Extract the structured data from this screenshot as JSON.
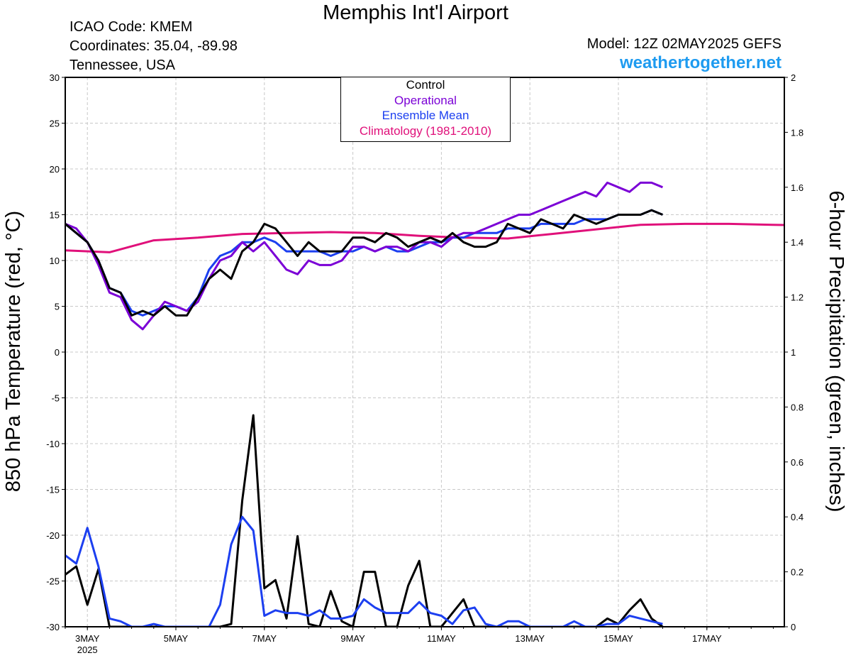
{
  "header": {
    "title": "Memphis Int'l Airport",
    "icao": "ICAO Code: KMEM",
    "coordinates": "Coordinates: 35.04, -89.98",
    "region": "Tennessee, USA",
    "model": "Model: 12Z 02MAY2025 GEFS",
    "site": "weathertogether.net"
  },
  "colors": {
    "control": "#000000",
    "operational": "#7b00d6",
    "ensemble_mean": "#1c3ff0",
    "climatology": "#e0107a",
    "members_temp": "#f04a3a",
    "members_precip": "#22cc22"
  },
  "chart_data": {
    "type": "line",
    "title": "Memphis Int'l Airport",
    "ylabel_left": "850 hPa Temperature (red, °C)",
    "ylabel_right": "6-hour Precipitation (green, inches)",
    "ylim_left": [
      -30,
      30
    ],
    "ylim_right": [
      0,
      2
    ],
    "y_ticks_left": [
      "30",
      "25",
      "20",
      "15",
      "10",
      "5",
      "0",
      "-5",
      "-10",
      "-15",
      "-20",
      "-25",
      "-30"
    ],
    "y_ticks_right": [
      "2",
      "1.8",
      "1.6",
      "1.4",
      "1.2",
      "1",
      "0.8",
      "0.6",
      "0.4",
      "0.2",
      "0"
    ],
    "x_ticks": [
      "3MAY",
      "5MAY",
      "7MAY",
      "9MAY",
      "11MAY",
      "13MAY",
      "15MAY",
      "17MAY"
    ],
    "x_sub": "2025",
    "x_hours_range": [
      0,
      390
    ],
    "x_tick_hours": [
      12,
      60,
      108,
      156,
      204,
      252,
      300,
      348
    ],
    "legend": [
      "Control",
      "Operational",
      "Ensemble Mean",
      "Climatology (1981-2010)"
    ],
    "legend_placement": "top-center",
    "grid": true,
    "series": [
      {
        "name": "Control",
        "axis": "left",
        "color": "#000000",
        "values": [
          14,
          13,
          12,
          10,
          7,
          6.5,
          4,
          4.5,
          4,
          5,
          4,
          4,
          6,
          8,
          9,
          8,
          11,
          12,
          14,
          13.5,
          12,
          10.5,
          12,
          11,
          11,
          11,
          12.5,
          12.5,
          12,
          13,
          12.5,
          11.5,
          12,
          12.5,
          12,
          13,
          12,
          11.5,
          11.5,
          12,
          14,
          13.5,
          13,
          14.5,
          14,
          13.5,
          15,
          14.5,
          14,
          14.5,
          15,
          15,
          15,
          15.5,
          15
        ]
      },
      {
        "name": "Operational",
        "axis": "left",
        "color": "#7b00d6",
        "values": [
          14,
          13.5,
          12,
          9.5,
          6.5,
          6,
          3.5,
          2.5,
          4,
          5.5,
          5,
          4.5,
          5.5,
          8,
          10,
          10.5,
          12,
          11,
          12,
          10.5,
          9,
          8.5,
          10,
          9.5,
          9.5,
          10,
          11.5,
          11.5,
          11,
          11.5,
          11.5,
          11,
          12,
          12,
          11.5,
          12.5,
          13,
          13,
          13.5,
          14,
          14.5,
          15,
          15,
          15.5,
          16,
          16.5,
          17,
          17.5,
          17,
          18.5,
          18,
          17.5,
          18.5,
          18.5,
          18
        ]
      },
      {
        "name": "Ensemble Mean",
        "axis": "left",
        "color": "#1c3ff0",
        "values": [
          14,
          13,
          12,
          10,
          7,
          6.5,
          4.5,
          4,
          4.5,
          5,
          5,
          4.5,
          6,
          9,
          10.5,
          11,
          12,
          12,
          12.5,
          12,
          11,
          11,
          11,
          11,
          10.5,
          11,
          11,
          11.5,
          11,
          11.5,
          11,
          11,
          11.5,
          12,
          12,
          12.5,
          12.5,
          13,
          13,
          13,
          13.5,
          13.5,
          13.5,
          14,
          14,
          14,
          14,
          14.5,
          14.5,
          14.5,
          15,
          15,
          15,
          15.5,
          15
        ]
      },
      {
        "name": "Climatology (1981-2010)",
        "axis": "left",
        "color": "#e0107a",
        "values": [
          11.4,
          11.1,
          10.9,
          12.2,
          12.5,
          12.9,
          13,
          13.1,
          13,
          12.7,
          12.5,
          12.4,
          12.9,
          13.4,
          13.9,
          14,
          14,
          13.9,
          13.8,
          13.8
        ]
      },
      {
        "name": "Control precip",
        "axis": "right",
        "color": "#000000",
        "values": [
          0.19,
          0.22,
          0.08,
          0.21,
          0.0,
          0.0,
          0.0,
          0.0,
          0.0,
          0.0,
          0.0,
          0.0,
          0.0,
          0.0,
          0.0,
          0.01,
          0.46,
          0.77,
          0.14,
          0.17,
          0.03,
          0.33,
          0.01,
          0.0,
          0.13,
          0.02,
          0.0,
          0.2,
          0.2,
          0.0,
          0.0,
          0.15,
          0.24,
          0.0,
          0.0,
          0.05,
          0.1,
          0.0,
          0.0,
          0.0,
          0.0,
          0.0,
          0.0,
          0.0,
          0.0,
          0.0,
          0.0,
          0.0,
          0.0,
          0.03,
          0.01,
          0.06,
          0.1,
          0.03,
          0.0
        ]
      },
      {
        "name": "Ensemble Mean precip",
        "axis": "right",
        "color": "#1c3ff0",
        "values": [
          0.26,
          0.23,
          0.36,
          0.22,
          0.03,
          0.02,
          0.0,
          0.0,
          0.01,
          0.0,
          0.0,
          0.0,
          0.0,
          0.0,
          0.08,
          0.3,
          0.4,
          0.35,
          0.04,
          0.06,
          0.05,
          0.05,
          0.04,
          0.06,
          0.03,
          0.03,
          0.04,
          0.1,
          0.07,
          0.05,
          0.05,
          0.05,
          0.09,
          0.05,
          0.04,
          0.01,
          0.06,
          0.07,
          0.01,
          0.0,
          0.02,
          0.02,
          0.0,
          0.0,
          0.0,
          0.0,
          0.02,
          0.0,
          0.0,
          0.01,
          0.01,
          0.04,
          0.03,
          0.02,
          0.01
        ]
      }
    ]
  }
}
